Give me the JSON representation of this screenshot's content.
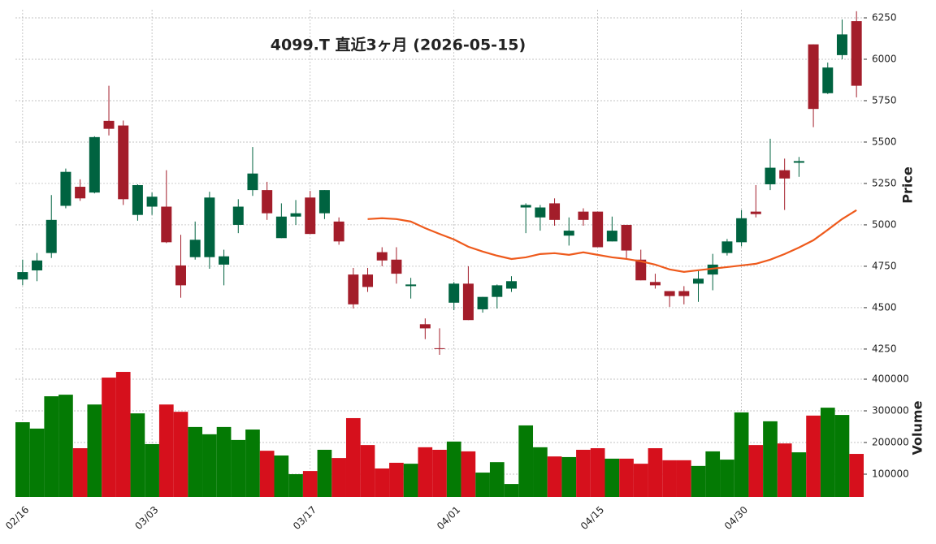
{
  "chart_data": {
    "type": "candlestick",
    "title": "4099.T  直近3ヶ月  (2026-05-15)",
    "categories": [
      "02/16",
      null,
      null,
      null,
      null,
      null,
      null,
      null,
      null,
      "03/03",
      null,
      null,
      null,
      null,
      null,
      null,
      null,
      null,
      null,
      null,
      "03/17",
      null,
      null,
      null,
      null,
      null,
      null,
      null,
      null,
      null,
      "04/01",
      null,
      null,
      null,
      null,
      null,
      null,
      null,
      null,
      null,
      "04/15",
      null,
      null,
      null,
      null,
      null,
      null,
      null,
      null,
      null,
      "04/30",
      null,
      null,
      null,
      null,
      null,
      null,
      null,
      null
    ],
    "open": [
      4670,
      4725,
      4830,
      5115,
      5230,
      5195,
      5628,
      5600,
      5060,
      5110,
      5110,
      4755,
      4805,
      4805,
      4760,
      5000,
      5210,
      5210,
      4920,
      5050,
      5165,
      5070,
      5020,
      4700,
      4700,
      4835,
      4790,
      4630,
      4400,
      4255,
      4530,
      4645,
      4490,
      4565,
      4615,
      5105,
      5045,
      5130,
      4935,
      5080,
      5080,
      4900,
      5000,
      4790,
      4655,
      4600,
      4600,
      4645,
      4700,
      4830,
      4895,
      5080,
      5245,
      5330,
      5375,
      6090,
      5795,
      6025,
      6230
    ],
    "high": [
      4790,
      4830,
      5180,
      5340,
      5275,
      5535,
      5840,
      5630,
      5245,
      5195,
      5330,
      4940,
      5020,
      5200,
      4850,
      5155,
      5470,
      5260,
      5130,
      5150,
      5205,
      5210,
      5045,
      4740,
      4740,
      4865,
      4865,
      4680,
      4435,
      4375,
      4655,
      4750,
      4565,
      4640,
      4690,
      5130,
      5120,
      5160,
      5045,
      5100,
      5080,
      5050,
      5000,
      4850,
      4705,
      4600,
      4630,
      4725,
      4825,
      4915,
      5090,
      5240,
      5520,
      5400,
      5410,
      6090,
      5980,
      6240,
      6290
    ],
    "low": [
      4635,
      4660,
      4800,
      5100,
      5145,
      5190,
      5540,
      5120,
      5025,
      5060,
      4890,
      4560,
      4790,
      4735,
      4635,
      4950,
      5175,
      5030,
      4920,
      5000,
      4945,
      5035,
      4880,
      4495,
      4595,
      4750,
      4645,
      4555,
      4310,
      4215,
      4485,
      4425,
      4470,
      4495,
      4595,
      4950,
      4965,
      4995,
      4875,
      4995,
      4865,
      4900,
      4790,
      4665,
      4615,
      4505,
      4520,
      4535,
      4605,
      4815,
      4870,
      5045,
      5210,
      5090,
      5290,
      5590,
      5790,
      6000,
      5770
    ],
    "close": [
      4715,
      4785,
      5030,
      5320,
      5160,
      5530,
      5580,
      5155,
      5240,
      5170,
      4895,
      4635,
      4910,
      5165,
      4810,
      5110,
      5310,
      5070,
      5050,
      5070,
      4945,
      5210,
      4900,
      4520,
      4625,
      4785,
      4705,
      4640,
      4375,
      4250,
      4645,
      4425,
      4565,
      4635,
      4660,
      5120,
      5105,
      5030,
      4965,
      5030,
      4865,
      4965,
      4845,
      4665,
      4635,
      4570,
      4570,
      4675,
      4760,
      4900,
      5040,
      5065,
      5345,
      5280,
      5385,
      5700,
      5950,
      6150,
      5840
    ],
    "up_color": "#006340",
    "down_color": "#a31d2a",
    "ylabel": "Price",
    "ylim": [
      4127,
      6299
    ],
    "yticks": [
      4250,
      4500,
      4750,
      5000,
      5250,
      5500,
      5750,
      6000,
      6250
    ],
    "grid": true,
    "ma": {
      "color": "#ee5a1c",
      "values": [
        null,
        null,
        null,
        null,
        null,
        null,
        null,
        null,
        null,
        null,
        null,
        null,
        null,
        null,
        null,
        null,
        null,
        null,
        null,
        null,
        null,
        null,
        null,
        null,
        5035,
        5040,
        5035,
        5020,
        4980,
        4945,
        4912,
        4868,
        4839,
        4814,
        4794,
        4804,
        4824,
        4829,
        4819,
        4834,
        4819,
        4804,
        4794,
        4780,
        4760,
        4731,
        4716,
        4726,
        4736,
        4745,
        4755,
        4765,
        4790,
        4824,
        4863,
        4907,
        4970,
        5035,
        5089
      ]
    },
    "volume": {
      "ylabel": "Volume",
      "ylim": [
        28205,
        430769
      ],
      "yticks": [
        100000,
        200000,
        300000,
        400000
      ],
      "up_color": "#047a04",
      "down_color": "#d6101c",
      "values": [
        264000,
        244000,
        346000,
        351000,
        182000,
        320000,
        405000,
        423000,
        292000,
        195000,
        320000,
        297000,
        249000,
        226000,
        249000,
        208000,
        241000,
        174000,
        159000,
        100000,
        110000,
        177000,
        151000,
        277000,
        192000,
        118000,
        136000,
        133000,
        185000,
        177000,
        203000,
        172000,
        105000,
        138000,
        69000,
        254000,
        185000,
        156000,
        154000,
        177000,
        182000,
        149000,
        149000,
        133000,
        182000,
        144000,
        144000,
        126000,
        172000,
        146000,
        295000,
        192000,
        267000,
        197000,
        169000,
        285000,
        310000,
        287000,
        164000
      ]
    }
  }
}
